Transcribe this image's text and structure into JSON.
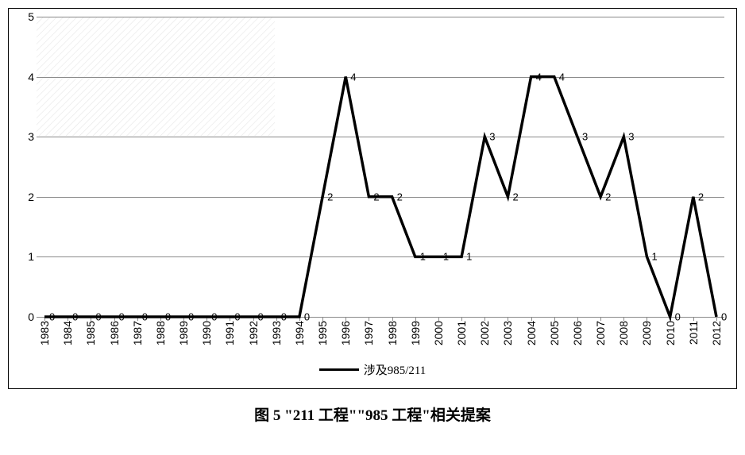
{
  "chart": {
    "type": "line",
    "years": [
      1983,
      1984,
      1985,
      1986,
      1987,
      1988,
      1989,
      1990,
      1991,
      1992,
      1993,
      1994,
      1995,
      1996,
      1997,
      1998,
      1999,
      2000,
      2001,
      2002,
      2003,
      2004,
      2005,
      2006,
      2007,
      2008,
      2009,
      2010,
      2011,
      2012
    ],
    "values": [
      0,
      0,
      0,
      0,
      0,
      0,
      0,
      0,
      0,
      0,
      0,
      0,
      2,
      4,
      2,
      2,
      1,
      1,
      1,
      3,
      2,
      4,
      4,
      3,
      2,
      3,
      1,
      0,
      2,
      0
    ],
    "ylim": [
      0,
      5
    ],
    "ytick_step": 1,
    "yticks": [
      0,
      1,
      2,
      3,
      4,
      5
    ],
    "line_color": "#000000",
    "line_width": 3.5,
    "background_color": "#ffffff",
    "hatch_color": "#e6e6e6",
    "grid_color": "#8a8a8a",
    "axis_color": "#8a8a8a",
    "label_fontsize": 14,
    "data_label_fontsize": 13,
    "legend_fontsize": 15,
    "legend_label": "涉及985/211",
    "caption": "图 5 \"211 工程\"\"985 工程\"相关提案",
    "caption_fontsize": 19
  }
}
